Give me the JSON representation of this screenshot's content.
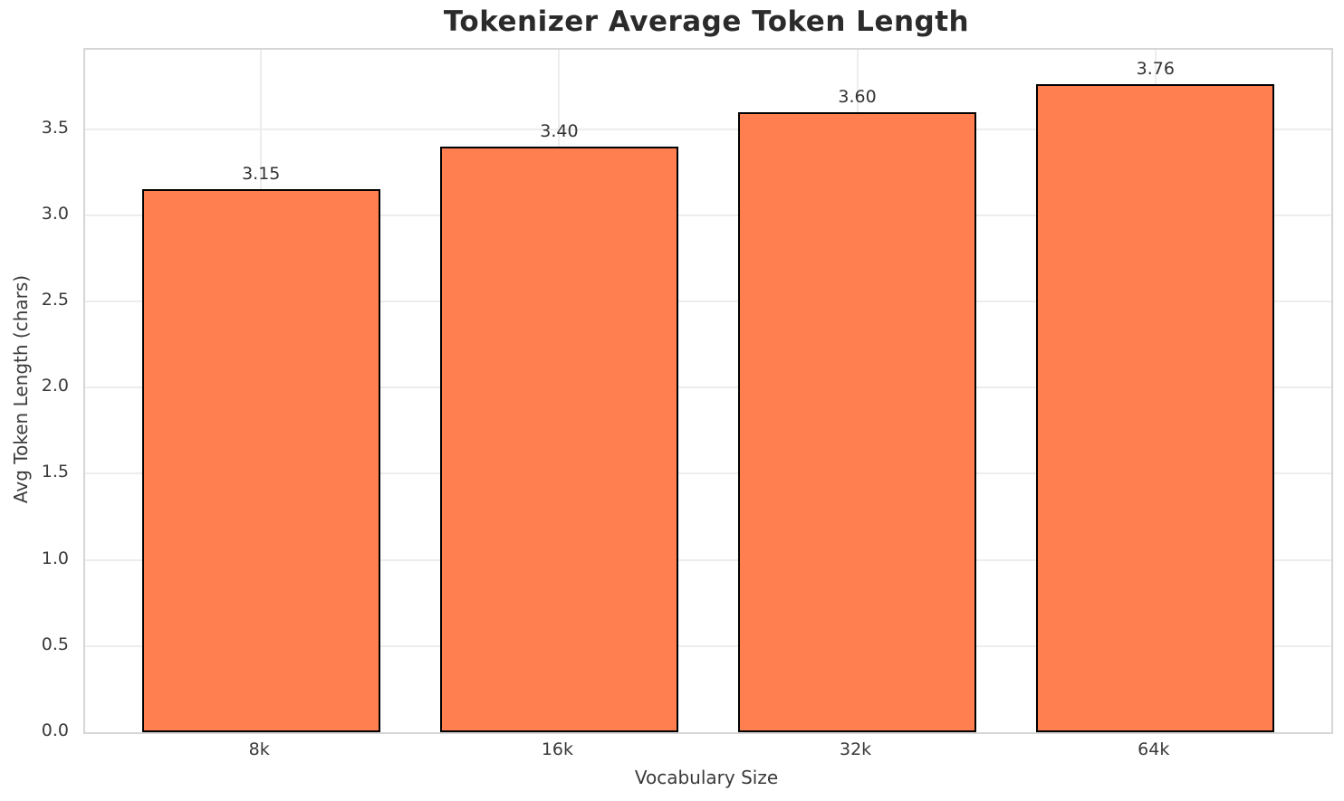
{
  "title": "Tokenizer Average Token Length",
  "chart_data": {
    "type": "bar",
    "title": "Tokenizer Average Token Length",
    "categories": [
      "8k",
      "16k",
      "32k",
      "64k"
    ],
    "values": [
      3.15,
      3.4,
      3.6,
      3.76
    ],
    "bar_value_labels": [
      "3.15",
      "3.40",
      "3.60",
      "3.76"
    ],
    "xlabel": "Vocabulary Size",
    "ylabel": "Avg Token Length (chars)",
    "ylim": [
      0,
      3.96
    ],
    "yticks": [
      0.0,
      0.5,
      1.0,
      1.5,
      2.0,
      2.5,
      3.0,
      3.5
    ],
    "ytick_labels": [
      "0.0",
      "0.5",
      "1.0",
      "1.5",
      "2.0",
      "2.5",
      "3.0",
      "3.5"
    ],
    "grid": true,
    "legend": false,
    "colors": {
      "bar_fill": "#ff7f50",
      "bar_edge": "#000000",
      "grid": "#ededed",
      "spine": "#d6d6d6",
      "tick_text": "#3a3a3a",
      "title_text": "#2b2b2b",
      "background": "#ffffff"
    }
  }
}
